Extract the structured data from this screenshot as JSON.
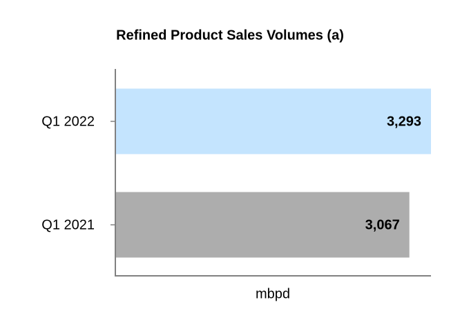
{
  "chart_data": {
    "type": "barh",
    "title": "Refined Product Sales Volumes (a)",
    "categories": [
      "Q1 2022",
      "Q1 2021"
    ],
    "values": [
      3293,
      3067
    ],
    "value_labels": [
      "3,293",
      "3,067"
    ],
    "colors": [
      "#c4e4fe",
      "#adadad"
    ],
    "xlabel": "mbpd",
    "xlim": [
      0,
      3293
    ]
  }
}
